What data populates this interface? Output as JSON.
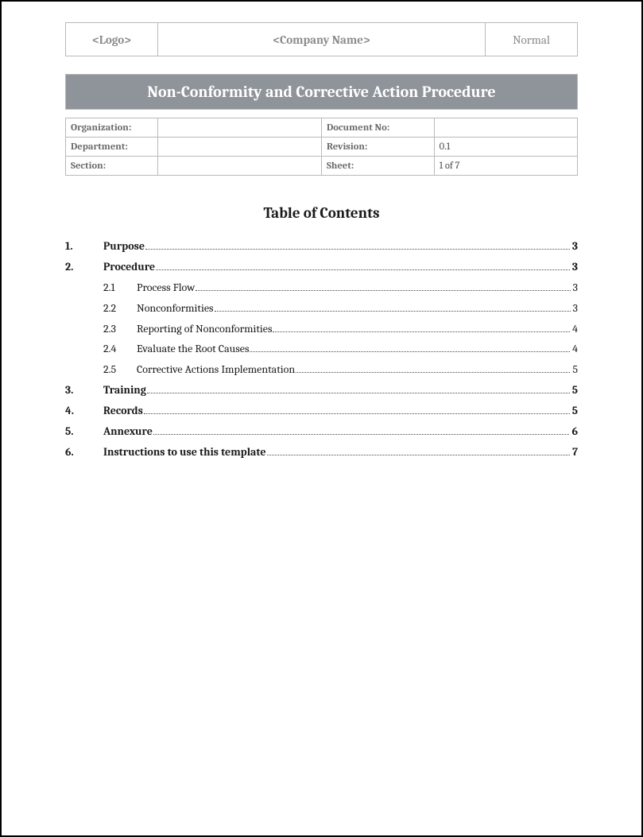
{
  "colors": {
    "page_border": "#000000",
    "cell_border": "#b9b9b9",
    "header_text": "#8a8a8a",
    "meta_label_text": "#6b6b6b",
    "meta_value_text": "#474747",
    "title_bar_bg": "#8e9499",
    "title_bar_text": "#ffffff",
    "body_text": "#1a1a1a",
    "dot_leader": "#4a4a4a",
    "background": "#ffffff"
  },
  "typography": {
    "font_family": "Cambria, Georgia, 'Times New Roman', serif",
    "title_bar_fontsize_pt": 15,
    "toc_title_fontsize_pt": 14,
    "body_fontsize_pt": 10.5,
    "meta_fontsize_pt": 9.5
  },
  "header": {
    "logo_placeholder": "<Logo>",
    "company_placeholder": "<Company Name>",
    "style_word": "Normal"
  },
  "title_bar": "Non-Conformity and Corrective Action Procedure",
  "meta": {
    "rows": [
      {
        "left_label": "Organization:",
        "left_value": "",
        "right_label": "Document No:",
        "right_value": ""
      },
      {
        "left_label": "Department:",
        "left_value": "",
        "right_label": "Revision:",
        "right_value": "0.1"
      },
      {
        "left_label": "Section:",
        "left_value": "",
        "right_label": "Sheet:",
        "right_value": "1 of 7"
      }
    ]
  },
  "toc": {
    "title": "Table of Contents",
    "entries": [
      {
        "level": 1,
        "num": "1.",
        "label": "Purpose",
        "page": "3"
      },
      {
        "level": 1,
        "num": "2.",
        "label": "Procedure",
        "page": "3"
      },
      {
        "level": 2,
        "num": "2.1",
        "label": "Process Flow",
        "page": "3"
      },
      {
        "level": 2,
        "num": "2.2",
        "label": "Nonconformities",
        "page": "3"
      },
      {
        "level": 2,
        "num": "2.3",
        "label": "Reporting of Nonconformities",
        "page": "4"
      },
      {
        "level": 2,
        "num": "2.4",
        "label": "Evaluate the Root Causes",
        "page": "4"
      },
      {
        "level": 2,
        "num": "2.5",
        "label": "Corrective Actions Implementation",
        "page": "5"
      },
      {
        "level": 1,
        "num": "3.",
        "label": "Training",
        "page": "5"
      },
      {
        "level": 1,
        "num": "4.",
        "label": "Records",
        "page": "5"
      },
      {
        "level": 1,
        "num": "5.",
        "label": "Annexure",
        "page": "6"
      },
      {
        "level": 1,
        "num": "6.",
        "label": "Instructions to use this template",
        "page": "7"
      }
    ]
  }
}
